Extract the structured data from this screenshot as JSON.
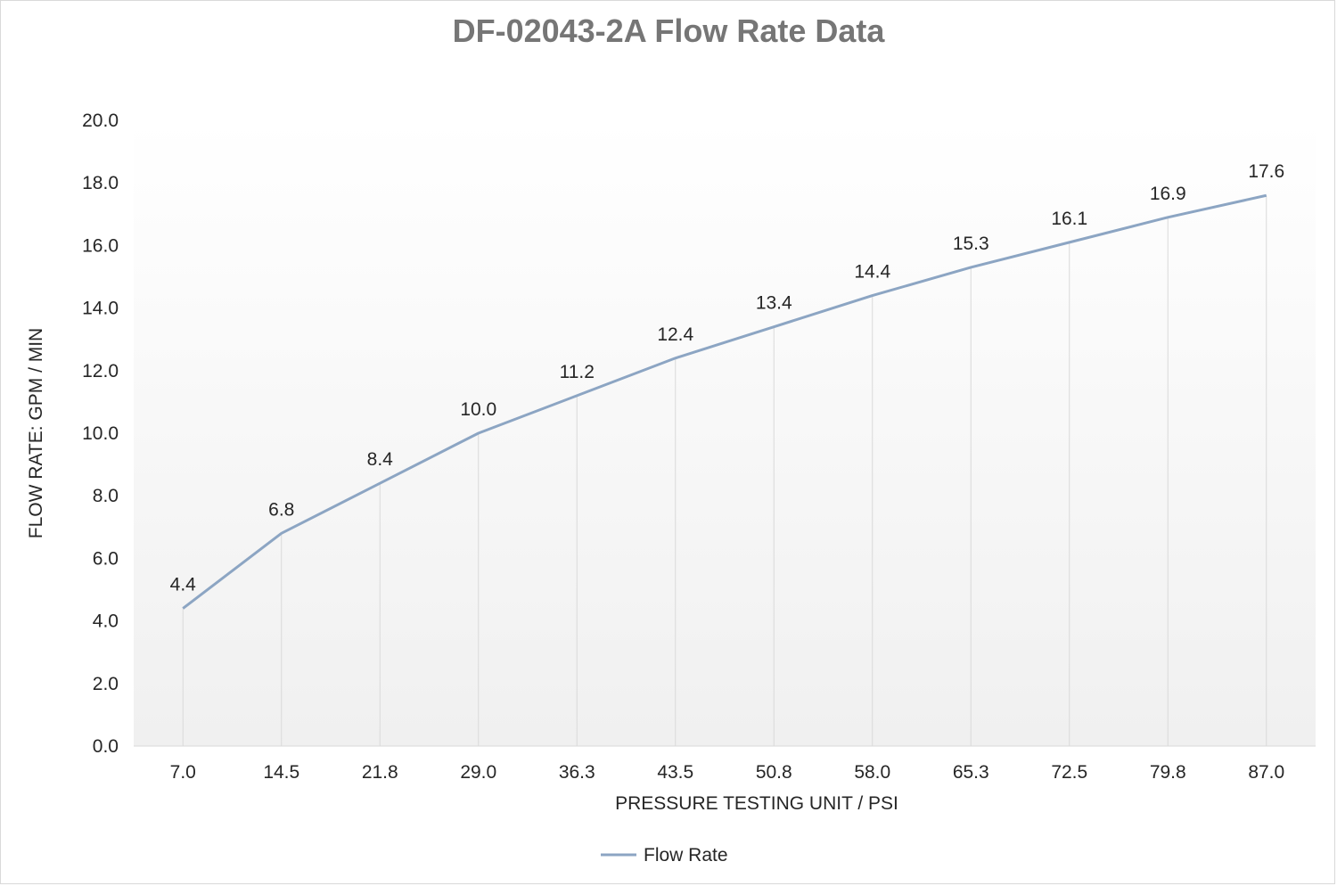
{
  "chart_data": {
    "type": "line",
    "title": "DF-02043-2A Flow Rate Data",
    "xlabel": "PRESSURE TESTING UNIT / PSI",
    "ylabel": "FLOW RATE: GPM / MIN",
    "categories": [
      "7.0",
      "14.5",
      "21.8",
      "29.0",
      "36.3",
      "43.5",
      "50.8",
      "58.0",
      "65.3",
      "72.5",
      "79.8",
      "87.0"
    ],
    "series": [
      {
        "name": "Flow Rate",
        "values": [
          4.4,
          6.8,
          8.4,
          10.0,
          11.2,
          12.4,
          13.4,
          14.4,
          15.3,
          16.1,
          16.9,
          17.6
        ],
        "labels": [
          "4.4",
          "6.8",
          "8.4",
          "10.0",
          "11.2",
          "12.4",
          "13.4",
          "14.4",
          "15.3",
          "16.1",
          "16.9",
          "17.6"
        ]
      }
    ],
    "ylim": [
      0,
      20
    ],
    "yticks": [
      "0.0",
      "2.0",
      "4.0",
      "6.0",
      "8.0",
      "10.0",
      "12.0",
      "14.0",
      "16.0",
      "18.0",
      "20.0"
    ],
    "grid": false,
    "drop_lines": true,
    "legend_position": "bottom",
    "colors": {
      "line": "#8ca5c3",
      "drop_line": "#d9d9d9",
      "title": "#767676",
      "plot_fill_top": "#ffffff",
      "plot_fill_bottom": "#f0f0f0"
    }
  }
}
